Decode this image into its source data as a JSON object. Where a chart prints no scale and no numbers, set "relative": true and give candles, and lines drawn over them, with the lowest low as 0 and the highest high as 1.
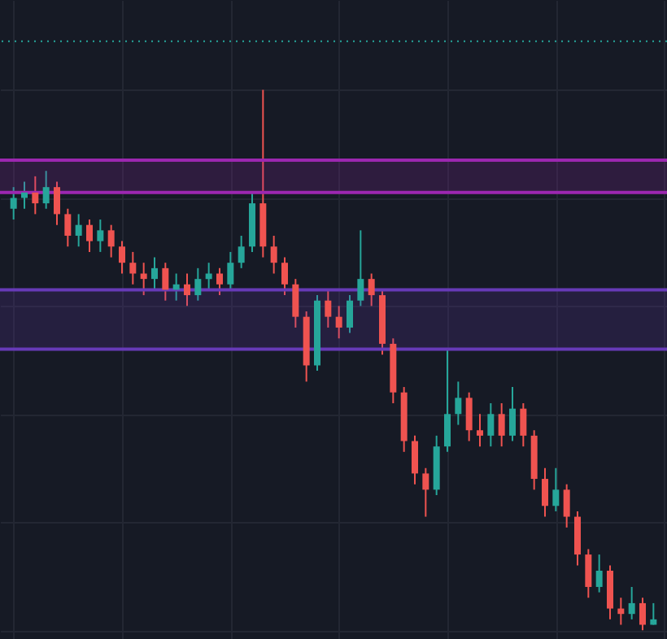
{
  "chart_data": {
    "type": "candlestick",
    "relative": true,
    "grid": true,
    "categories": [
      null,
      null,
      null,
      null,
      null,
      null,
      null,
      null,
      null,
      null,
      null,
      null,
      null,
      null,
      null,
      null,
      null,
      null,
      null,
      null,
      null,
      null,
      null,
      null,
      null,
      null,
      null,
      null,
      null,
      null,
      null,
      null,
      null,
      null,
      null,
      null,
      null,
      null,
      null,
      null,
      null,
      null,
      null,
      null,
      null,
      null,
      null,
      null,
      null,
      null,
      null,
      null,
      null,
      null,
      null,
      null,
      null,
      null,
      null,
      null
    ],
    "ohlc": [
      [
        0.78,
        0.82,
        0.76,
        0.8
      ],
      [
        0.8,
        0.83,
        0.78,
        0.81
      ],
      [
        0.81,
        0.84,
        0.77,
        0.79
      ],
      [
        0.79,
        0.85,
        0.78,
        0.82
      ],
      [
        0.82,
        0.83,
        0.75,
        0.77
      ],
      [
        0.77,
        0.78,
        0.71,
        0.73
      ],
      [
        0.73,
        0.77,
        0.71,
        0.75
      ],
      [
        0.75,
        0.76,
        0.7,
        0.72
      ],
      [
        0.72,
        0.76,
        0.7,
        0.74
      ],
      [
        0.74,
        0.75,
        0.69,
        0.71
      ],
      [
        0.71,
        0.72,
        0.66,
        0.68
      ],
      [
        0.68,
        0.7,
        0.64,
        0.66
      ],
      [
        0.66,
        0.68,
        0.62,
        0.65
      ],
      [
        0.65,
        0.69,
        0.63,
        0.67
      ],
      [
        0.67,
        0.68,
        0.61,
        0.63
      ],
      [
        0.63,
        0.66,
        0.61,
        0.64
      ],
      [
        0.64,
        0.66,
        0.6,
        0.62
      ],
      [
        0.62,
        0.67,
        0.61,
        0.65
      ],
      [
        0.65,
        0.68,
        0.63,
        0.66
      ],
      [
        0.66,
        0.67,
        0.62,
        0.64
      ],
      [
        0.64,
        0.7,
        0.63,
        0.68
      ],
      [
        0.68,
        0.73,
        0.67,
        0.71
      ],
      [
        0.71,
        0.81,
        0.7,
        0.79
      ],
      [
        0.79,
        1,
        0.69,
        0.71
      ],
      [
        0.71,
        0.73,
        0.66,
        0.68
      ],
      [
        0.68,
        0.69,
        0.62,
        0.64
      ],
      [
        0.64,
        0.65,
        0.56,
        0.58
      ],
      [
        0.58,
        0.59,
        0.46,
        0.49
      ],
      [
        0.49,
        0.62,
        0.48,
        0.61
      ],
      [
        0.61,
        0.63,
        0.56,
        0.58
      ],
      [
        0.58,
        0.6,
        0.54,
        0.56
      ],
      [
        0.56,
        0.62,
        0.55,
        0.61
      ],
      [
        0.61,
        0.74,
        0.6,
        0.65
      ],
      [
        0.65,
        0.66,
        0.6,
        0.62
      ],
      [
        0.62,
        0.63,
        0.51,
        0.53
      ],
      [
        0.53,
        0.54,
        0.42,
        0.44
      ],
      [
        0.44,
        0.45,
        0.33,
        0.35
      ],
      [
        0.35,
        0.36,
        0.27,
        0.29
      ],
      [
        0.29,
        0.3,
        0.21,
        0.26
      ],
      [
        0.26,
        0.36,
        0.25,
        0.34
      ],
      [
        0.34,
        0.52,
        0.33,
        0.4
      ],
      [
        0.4,
        0.46,
        0.38,
        0.43
      ],
      [
        0.43,
        0.44,
        0.35,
        0.37
      ],
      [
        0.37,
        0.4,
        0.34,
        0.36
      ],
      [
        0.36,
        0.42,
        0.34,
        0.4
      ],
      [
        0.4,
        0.42,
        0.34,
        0.36
      ],
      [
        0.36,
        0.45,
        0.35,
        0.41
      ],
      [
        0.41,
        0.42,
        0.34,
        0.36
      ],
      [
        0.36,
        0.37,
        0.26,
        0.28
      ],
      [
        0.28,
        0.3,
        0.21,
        0.23
      ],
      [
        0.23,
        0.3,
        0.22,
        0.26
      ],
      [
        0.26,
        0.27,
        0.19,
        0.21
      ],
      [
        0.21,
        0.22,
        0.12,
        0.14
      ],
      [
        0.14,
        0.15,
        0.06,
        0.08
      ],
      [
        0.08,
        0.14,
        0.07,
        0.11
      ],
      [
        0.11,
        0.12,
        0.02,
        0.04
      ],
      [
        0.04,
        0.06,
        0.01,
        0.03
      ],
      [
        0.03,
        0.08,
        0.02,
        0.05
      ],
      [
        0.05,
        0.06,
        0,
        0.01
      ],
      [
        0.01,
        0.05,
        0.01,
        0.02
      ]
    ],
    "colors": [
      "#26a69a",
      "#26a69a",
      "#ef5350",
      "#26a69a",
      "#ef5350",
      "#ef5350",
      "#26a69a",
      "#ef5350",
      "#26a69a",
      "#ef5350",
      "#ef5350",
      "#ef5350",
      "#ef5350",
      "#26a69a",
      "#ef5350",
      "#26a69a",
      "#ef5350",
      "#26a69a",
      "#26a69a",
      "#ef5350",
      "#26a69a",
      "#26a69a",
      "#26a69a",
      "#ef5350",
      "#ef5350",
      "#ef5350",
      "#ef5350",
      "#ef5350",
      "#26a69a",
      "#ef5350",
      "#ef5350",
      "#26a69a",
      "#26a69a",
      "#ef5350",
      "#ef5350",
      "#ef5350",
      "#ef5350",
      "#ef5350",
      "#ef5350",
      "#26a69a",
      "#26a69a",
      "#26a69a",
      "#ef5350",
      "#ef5350",
      "#26a69a",
      "#ef5350",
      "#26a69a",
      "#ef5350",
      "#ef5350",
      "#ef5350",
      "#26a69a",
      "#ef5350",
      "#ef5350",
      "#ef5350",
      "#26a69a",
      "#ef5350",
      "#ef5350",
      "#26a69a",
      "#ef5350",
      "#26a69a"
    ],
    "bands": [
      {
        "axis": "y",
        "from": 0.81,
        "to": 0.87,
        "color": "#9c27b0"
      },
      {
        "axis": "y",
        "from": 0.52,
        "to": 0.63,
        "color": "#673ab7"
      }
    ],
    "ref_lines": [
      {
        "axis": "y",
        "value": 1.09,
        "color": "#26a69a",
        "line_style": "dotted"
      },
      {
        "axis": "y",
        "value": 0.87,
        "color": "#9c27b0",
        "line_style": "solid"
      },
      {
        "axis": "y",
        "value": 0.81,
        "color": "#9c27b0",
        "line_style": "solid"
      },
      {
        "axis": "y",
        "value": 0.63,
        "color": "#673ab7",
        "line_style": "solid"
      },
      {
        "axis": "y",
        "value": 0.52,
        "color": "#673ab7",
        "line_style": "solid"
      }
    ]
  }
}
